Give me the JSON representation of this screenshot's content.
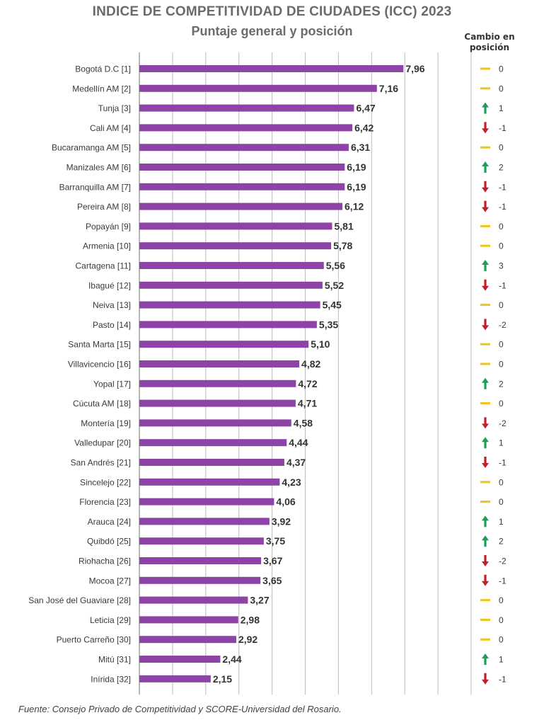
{
  "title": "INDICE DE COMPETITIVIDAD DE CIUDADES (ICC) 2023",
  "subtitle": "Puntaje general y posición",
  "change_header": "Cambio en posición",
  "source": "Fuente: Consejo Privado de Competitividad y SCORE-Universidad del Rosario.",
  "colors": {
    "bar": "#8e44a6",
    "up": "#1f9e5a",
    "down": "#c0202a",
    "same": "#f2c318",
    "grid": "#bdbdbd"
  },
  "chart_data": {
    "type": "bar",
    "orientation": "horizontal",
    "title": "INDICE DE COMPETITIVIDAD DE CIUDADES (ICC) 2023",
    "subtitle": "Puntaje general y posición",
    "xlim": [
      0,
      10
    ],
    "grid": true,
    "categories": [
      "Bogotá D.C [1]",
      "Medellín AM [2]",
      "Tunja [3]",
      "Cali AM [4]",
      "Bucaramanga AM [5]",
      "Manizales AM [6]",
      "Barranquilla AM [7]",
      "Pereira AM [8]",
      "Popayán [9]",
      "Armenia [10]",
      "Cartagena [11]",
      "Ibagué [12]",
      "Neiva [13]",
      "Pasto [14]",
      "Santa Marta [15]",
      "Villavicencio [16]",
      "Yopal [17]",
      "Cúcuta AM [18]",
      "Montería [19]",
      "Valledupar [20]",
      "San Andrés [21]",
      "Sincelejo [22]",
      "Florencia [23]",
      "Arauca [24]",
      "Quibdó [25]",
      "Riohacha [26]",
      "Mocoa [27]",
      "San José del Guaviare [28]",
      "Leticia [29]",
      "Puerto Carreño [30]",
      "Mitú [31]",
      "Inírida [32]"
    ],
    "values": [
      7.96,
      7.16,
      6.47,
      6.42,
      6.31,
      6.19,
      6.19,
      6.12,
      5.81,
      5.78,
      5.56,
      5.52,
      5.45,
      5.35,
      5.1,
      4.82,
      4.72,
      4.71,
      4.58,
      4.44,
      4.37,
      4.23,
      4.06,
      3.92,
      3.75,
      3.67,
      3.65,
      3.27,
      2.98,
      2.92,
      2.44,
      2.15
    ],
    "value_labels": [
      "7,96",
      "7,16",
      "6,47",
      "6,42",
      "6,31",
      "6,19",
      "6,19",
      "6,12",
      "5,81",
      "5,78",
      "5,56",
      "5,52",
      "5,45",
      "5,35",
      "5,10",
      "4,82",
      "4,72",
      "4,71",
      "4,58",
      "4,44",
      "4,37",
      "4,23",
      "4,06",
      "3,92",
      "3,75",
      "3,67",
      "3,65",
      "3,27",
      "2,98",
      "2,92",
      "2,44",
      "2,15"
    ],
    "position_change": [
      0,
      0,
      1,
      -1,
      0,
      2,
      -1,
      -1,
      0,
      0,
      3,
      -1,
      0,
      -2,
      0,
      0,
      2,
      0,
      -2,
      1,
      -1,
      0,
      0,
      1,
      2,
      -2,
      -1,
      0,
      0,
      0,
      1,
      -1
    ]
  }
}
